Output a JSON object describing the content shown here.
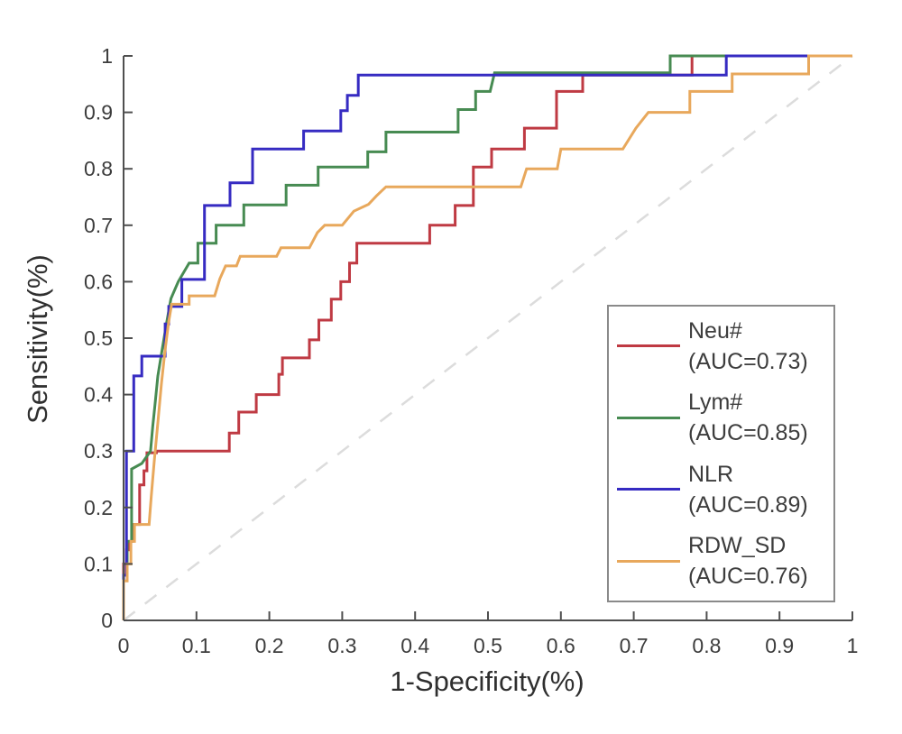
{
  "chart_data": {
    "type": "line",
    "subtype": "roc-step-curves",
    "title": "",
    "xlabel": "1-Specificity(%)",
    "ylabel": "Sensitivity(%)",
    "xlim": [
      0,
      1
    ],
    "ylim": [
      0,
      1
    ],
    "grid": false,
    "legend_position": "inside lower right",
    "axis_color": "#4f4f4f",
    "tick_label_color": "#3d3d3d",
    "tick_label_size": 23,
    "x_ticks": [
      "0",
      "0.1",
      "0.2",
      "0.3",
      "0.4",
      "0.5",
      "0.6",
      "0.7",
      "0.8",
      "0.9",
      "1"
    ],
    "y_ticks": [
      "0",
      "0.1",
      "0.2",
      "0.3",
      "0.4",
      "0.5",
      "0.6",
      "0.7",
      "0.8",
      "0.9",
      "1"
    ],
    "reference_line": {
      "name": "chance-diagonal",
      "from": [
        0,
        0
      ],
      "to": [
        1,
        1
      ],
      "style": "dashed",
      "color": "#dcdcdc",
      "width": 2.5
    },
    "series": [
      {
        "name": "Neu#",
        "auc_label": "(AUC=0.73)",
        "auc": 0.73,
        "color": "#bf3a43",
        "points": [
          [
            0,
            0
          ],
          [
            0,
            0.1
          ],
          [
            0.004,
            0.1
          ],
          [
            0.004,
            0.125
          ],
          [
            0.008,
            0.125
          ],
          [
            0.008,
            0.14
          ],
          [
            0.012,
            0.14
          ],
          [
            0.012,
            0.17
          ],
          [
            0.022,
            0.17
          ],
          [
            0.022,
            0.24
          ],
          [
            0.028,
            0.24
          ],
          [
            0.028,
            0.265
          ],
          [
            0.032,
            0.265
          ],
          [
            0.032,
            0.297
          ],
          [
            0.045,
            0.297
          ],
          [
            0.045,
            0.3
          ],
          [
            0.145,
            0.3
          ],
          [
            0.145,
            0.332
          ],
          [
            0.158,
            0.332
          ],
          [
            0.158,
            0.369
          ],
          [
            0.182,
            0.369
          ],
          [
            0.182,
            0.4
          ],
          [
            0.213,
            0.4
          ],
          [
            0.213,
            0.436
          ],
          [
            0.218,
            0.436
          ],
          [
            0.218,
            0.465
          ],
          [
            0.255,
            0.465
          ],
          [
            0.255,
            0.497
          ],
          [
            0.268,
            0.497
          ],
          [
            0.268,
            0.532
          ],
          [
            0.285,
            0.532
          ],
          [
            0.285,
            0.569
          ],
          [
            0.298,
            0.569
          ],
          [
            0.298,
            0.6
          ],
          [
            0.31,
            0.6
          ],
          [
            0.31,
            0.633
          ],
          [
            0.32,
            0.633
          ],
          [
            0.32,
            0.668
          ],
          [
            0.42,
            0.668
          ],
          [
            0.42,
            0.7
          ],
          [
            0.455,
            0.7
          ],
          [
            0.455,
            0.735
          ],
          [
            0.48,
            0.735
          ],
          [
            0.48,
            0.803
          ],
          [
            0.505,
            0.803
          ],
          [
            0.505,
            0.835
          ],
          [
            0.55,
            0.835
          ],
          [
            0.55,
            0.872
          ],
          [
            0.594,
            0.872
          ],
          [
            0.594,
            0.937
          ],
          [
            0.63,
            0.937
          ],
          [
            0.63,
            0.966
          ],
          [
            0.78,
            0.966
          ],
          [
            0.78,
            1.0
          ],
          [
            1.0,
            1.0
          ]
        ]
      },
      {
        "name": "Lym#",
        "auc_label": "(AUC=0.85)",
        "auc": 0.85,
        "color": "#478b52",
        "points": [
          [
            0,
            0
          ],
          [
            0,
            0.08
          ],
          [
            0.005,
            0.08
          ],
          [
            0.005,
            0.14
          ],
          [
            0.011,
            0.14
          ],
          [
            0.011,
            0.268
          ],
          [
            0.025,
            0.278
          ],
          [
            0.037,
            0.3
          ],
          [
            0.04,
            0.343
          ],
          [
            0.043,
            0.38
          ],
          [
            0.047,
            0.433
          ],
          [
            0.053,
            0.48
          ],
          [
            0.059,
            0.527
          ],
          [
            0.065,
            0.57
          ],
          [
            0.075,
            0.6
          ],
          [
            0.09,
            0.633
          ],
          [
            0.102,
            0.633
          ],
          [
            0.102,
            0.668
          ],
          [
            0.127,
            0.668
          ],
          [
            0.127,
            0.7
          ],
          [
            0.165,
            0.7
          ],
          [
            0.165,
            0.736
          ],
          [
            0.223,
            0.736
          ],
          [
            0.223,
            0.771
          ],
          [
            0.267,
            0.771
          ],
          [
            0.267,
            0.803
          ],
          [
            0.335,
            0.803
          ],
          [
            0.335,
            0.83
          ],
          [
            0.36,
            0.83
          ],
          [
            0.36,
            0.865
          ],
          [
            0.459,
            0.865
          ],
          [
            0.459,
            0.905
          ],
          [
            0.483,
            0.905
          ],
          [
            0.483,
            0.937
          ],
          [
            0.503,
            0.937
          ],
          [
            0.509,
            0.97
          ],
          [
            0.75,
            0.97
          ],
          [
            0.75,
            1.0
          ],
          [
            1.0,
            1.0
          ]
        ]
      },
      {
        "name": "NLR",
        "auc_label": "(AUC=0.89)",
        "auc": 0.89,
        "color": "#362bc2",
        "points": [
          [
            0,
            0
          ],
          [
            0,
            0.08
          ],
          [
            0.004,
            0.08
          ],
          [
            0.004,
            0.3
          ],
          [
            0.014,
            0.3
          ],
          [
            0.014,
            0.433
          ],
          [
            0.025,
            0.433
          ],
          [
            0.025,
            0.468
          ],
          [
            0.057,
            0.468
          ],
          [
            0.057,
            0.525
          ],
          [
            0.062,
            0.525
          ],
          [
            0.062,
            0.556
          ],
          [
            0.08,
            0.556
          ],
          [
            0.08,
            0.604
          ],
          [
            0.111,
            0.604
          ],
          [
            0.111,
            0.735
          ],
          [
            0.146,
            0.735
          ],
          [
            0.146,
            0.775
          ],
          [
            0.177,
            0.775
          ],
          [
            0.177,
            0.835
          ],
          [
            0.247,
            0.835
          ],
          [
            0.247,
            0.867
          ],
          [
            0.298,
            0.867
          ],
          [
            0.298,
            0.903
          ],
          [
            0.307,
            0.903
          ],
          [
            0.307,
            0.93
          ],
          [
            0.322,
            0.93
          ],
          [
            0.322,
            0.966
          ],
          [
            0.827,
            0.966
          ],
          [
            0.827,
            1.0
          ],
          [
            1.0,
            1.0
          ]
        ]
      },
      {
        "name": "RDW_SD",
        "auc_label": "(AUC=0.76)",
        "auc": 0.76,
        "color": "#e8a85c",
        "points": [
          [
            0,
            0
          ],
          [
            0,
            0.07
          ],
          [
            0.005,
            0.07
          ],
          [
            0.005,
            0.1
          ],
          [
            0.01,
            0.1
          ],
          [
            0.01,
            0.14
          ],
          [
            0.015,
            0.14
          ],
          [
            0.015,
            0.17
          ],
          [
            0.035,
            0.17
          ],
          [
            0.038,
            0.22
          ],
          [
            0.042,
            0.28
          ],
          [
            0.047,
            0.35
          ],
          [
            0.052,
            0.42
          ],
          [
            0.057,
            0.48
          ],
          [
            0.062,
            0.53
          ],
          [
            0.066,
            0.56
          ],
          [
            0.09,
            0.56
          ],
          [
            0.09,
            0.575
          ],
          [
            0.125,
            0.575
          ],
          [
            0.132,
            0.605
          ],
          [
            0.14,
            0.628
          ],
          [
            0.155,
            0.628
          ],
          [
            0.16,
            0.645
          ],
          [
            0.21,
            0.645
          ],
          [
            0.216,
            0.66
          ],
          [
            0.255,
            0.66
          ],
          [
            0.266,
            0.687
          ],
          [
            0.276,
            0.7
          ],
          [
            0.3,
            0.7
          ],
          [
            0.316,
            0.725
          ],
          [
            0.336,
            0.737
          ],
          [
            0.347,
            0.752
          ],
          [
            0.36,
            0.768
          ],
          [
            0.545,
            0.768
          ],
          [
            0.553,
            0.8
          ],
          [
            0.595,
            0.8
          ],
          [
            0.6,
            0.835
          ],
          [
            0.685,
            0.835
          ],
          [
            0.703,
            0.872
          ],
          [
            0.72,
            0.9
          ],
          [
            0.777,
            0.9
          ],
          [
            0.777,
            0.937
          ],
          [
            0.835,
            0.937
          ],
          [
            0.835,
            0.968
          ],
          [
            0.94,
            0.968
          ],
          [
            0.94,
            1.0
          ],
          [
            1.0,
            1.0
          ]
        ]
      }
    ]
  }
}
